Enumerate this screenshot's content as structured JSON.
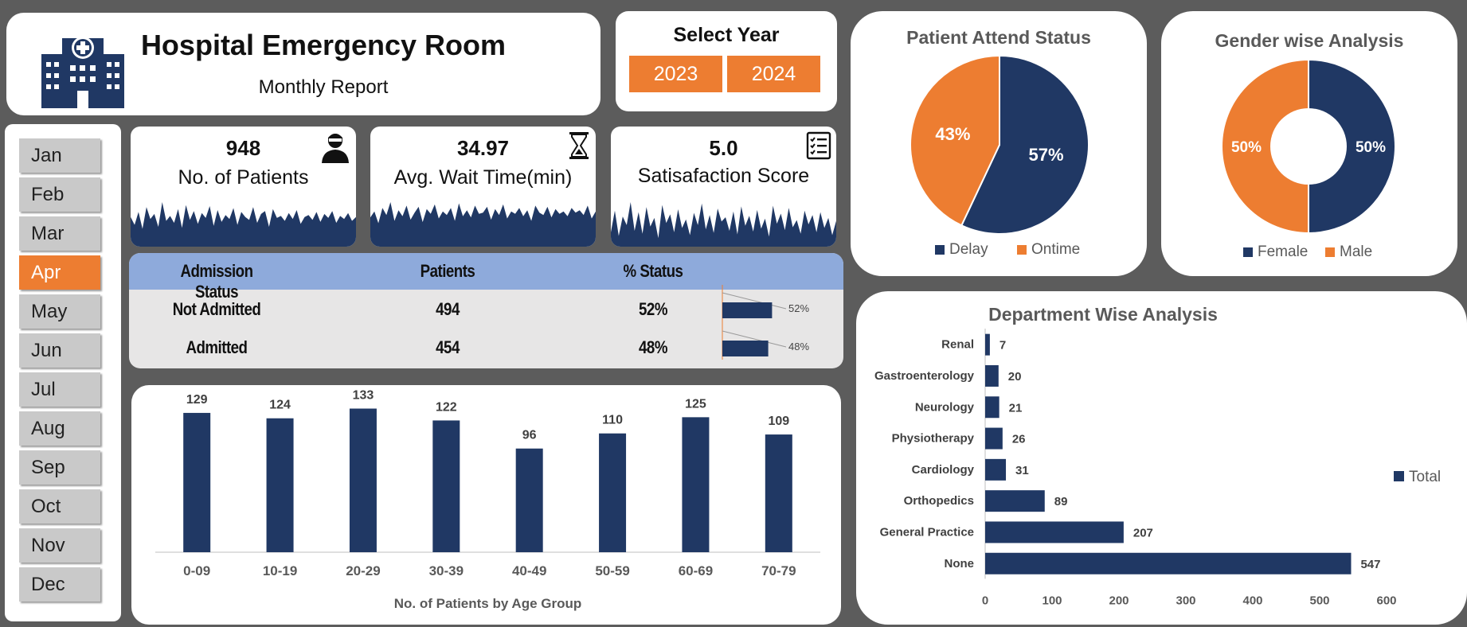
{
  "header": {
    "title": "Hospital Emergency Room",
    "subtitle": "Monthly Report",
    "icon": "hospital-building-icon"
  },
  "year_selector": {
    "label": "Select Year",
    "years": [
      "2023",
      "2024"
    ]
  },
  "months": {
    "items": [
      "Jan",
      "Feb",
      "Mar",
      "Apr",
      "May",
      "Jun",
      "Jul",
      "Aug",
      "Sep",
      "Oct",
      "Nov",
      "Dec"
    ],
    "selected": "Apr"
  },
  "kpis": {
    "patients": {
      "value": "948",
      "label": "No. of Patients",
      "icon": "patient-icon"
    },
    "wait": {
      "value": "34.97",
      "label": "Avg. Wait Time(min)",
      "icon": "hourglass-icon"
    },
    "satisfaction": {
      "value": "5.0",
      "label": "Satisafaction Score",
      "icon": "checklist-icon"
    }
  },
  "admission": {
    "headers": [
      "Admission Status",
      "Patients",
      "% Status"
    ],
    "rows": [
      {
        "status": "Not Admitted",
        "patients": "494",
        "pct": "52%",
        "bar_label": "52%",
        "share": 0.52
      },
      {
        "status": "Admitted",
        "patients": "454",
        "pct": "48%",
        "bar_label": "48%",
        "share": 0.48
      }
    ]
  },
  "colors": {
    "navy": "#203864",
    "orange": "#ed7d31",
    "header_blue": "#8eaadb"
  },
  "chart_data": [
    {
      "id": "age",
      "type": "bar",
      "title": "",
      "xlabel": "No. of Patients by Age Group",
      "ylabel": "",
      "categories": [
        "0-09",
        "10-19",
        "20-29",
        "30-39",
        "40-49",
        "50-59",
        "60-69",
        "70-79"
      ],
      "values": [
        129,
        124,
        133,
        122,
        96,
        110,
        125,
        109
      ],
      "ylim": [
        0,
        140
      ],
      "grid": false
    },
    {
      "id": "attend",
      "type": "pie",
      "title": "Patient Attend Status",
      "categories": [
        "Delay",
        "Ontime"
      ],
      "values": [
        57,
        43
      ],
      "labels": [
        "57%",
        "43%"
      ],
      "colors": [
        "#203864",
        "#ed7d31"
      ],
      "legend": "bottom"
    },
    {
      "id": "gender",
      "type": "pie",
      "title": "Gender wise Analysis",
      "categories": [
        "Female",
        "Male"
      ],
      "values": [
        50,
        50
      ],
      "labels": [
        "50%",
        "50%"
      ],
      "colors": [
        "#203864",
        "#ed7d31"
      ],
      "legend": "bottom"
    },
    {
      "id": "dept",
      "type": "bar",
      "title": "Department Wise Analysis",
      "orientation": "horizontal",
      "categories": [
        "Renal",
        "Gastroenterology",
        "Neurology",
        "Physiotherapy",
        "Cardiology",
        "Orthopedics",
        "General Practice",
        "None"
      ],
      "values": [
        7,
        20,
        21,
        26,
        31,
        89,
        207,
        547
      ],
      "xticks": [
        "0",
        "100",
        "200",
        "300",
        "400",
        "500",
        "600"
      ],
      "xlim": [
        0,
        600
      ],
      "series": [
        {
          "name": "Total",
          "values": [
            7,
            20,
            21,
            26,
            31,
            89,
            207,
            547
          ]
        }
      ],
      "legend": "right",
      "grid": false
    }
  ],
  "sparklines": {
    "patients": [
      30,
      22,
      35,
      18,
      40,
      28,
      33,
      20,
      45,
      26,
      31,
      24,
      38,
      19,
      42,
      27,
      36,
      23,
      34,
      29,
      41,
      21,
      37,
      25,
      32,
      28,
      39,
      22,
      35,
      30,
      27,
      40,
      24,
      33,
      36,
      20,
      38,
      29,
      31,
      26,
      34,
      28,
      37,
      23,
      30,
      32,
      27,
      35,
      25,
      33,
      29,
      36,
      24,
      31,
      28,
      34,
      26,
      30
    ],
    "wait": [
      25,
      30,
      20,
      33,
      27,
      38,
      22,
      31,
      26,
      35,
      23,
      29,
      34,
      21,
      32,
      28,
      36,
      24,
      30,
      27,
      33,
      22,
      37,
      26,
      31,
      25,
      35,
      28,
      29,
      34,
      23,
      32,
      27,
      36,
      24,
      30,
      28,
      33,
      26,
      31,
      22,
      35,
      29,
      27,
      34,
      25,
      32,
      28,
      30,
      26,
      33,
      29,
      31,
      27,
      35,
      24,
      30
    ],
    "satisfaction": [
      20,
      50,
      15,
      42,
      30,
      62,
      22,
      48,
      18,
      55,
      28,
      40,
      12,
      58,
      33,
      45,
      20,
      52,
      26,
      38,
      16,
      47,
      30,
      60,
      24,
      44,
      19,
      53,
      35,
      41,
      22,
      49,
      17,
      56,
      29,
      43,
      21,
      51,
      25,
      39,
      14,
      57,
      32,
      46,
      23,
      54,
      27,
      37,
      18,
      50,
      31,
      44,
      20,
      48,
      26,
      40,
      16,
      36
    ]
  }
}
